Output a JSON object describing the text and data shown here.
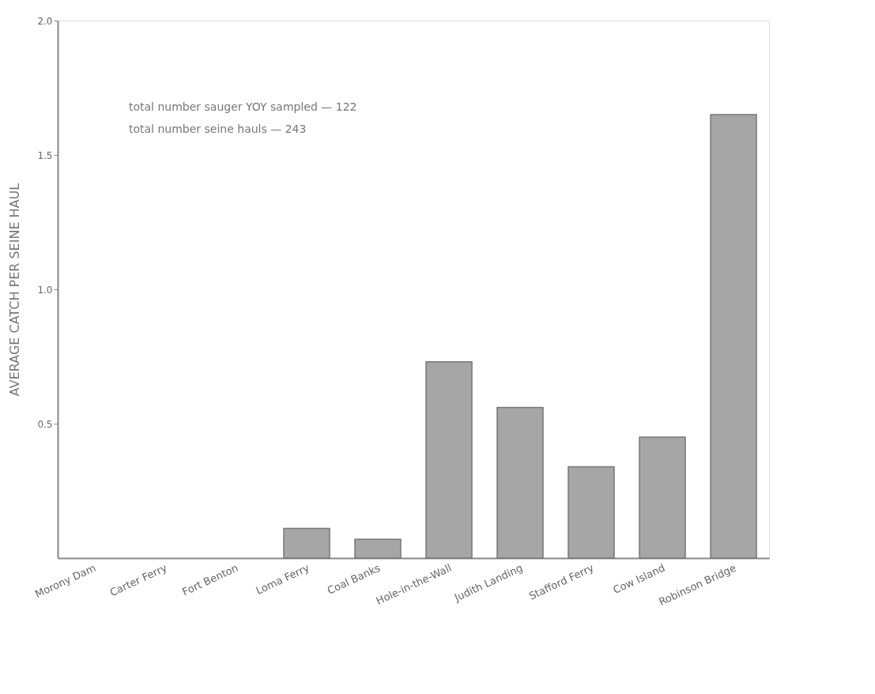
{
  "chart_data": {
    "type": "bar",
    "ylabel": "AVERAGE CATCH PER SEINE HAUL",
    "categories": [
      "Morony Dam",
      "Carter Ferry",
      "Fort Benton",
      "Loma Ferry",
      "Coal Banks",
      "Hole-in-the-Wall",
      "Judith Landing",
      "Stafford Ferry",
      "Cow Island",
      "Robinson Bridge"
    ],
    "values": [
      0,
      0,
      0,
      0.11,
      0.07,
      0.73,
      0.56,
      0.34,
      0.45,
      1.65
    ],
    "color": "#a6a6a6",
    "ylim": [
      0,
      2
    ],
    "yticks": [
      {
        "value": 0.5,
        "label": "0.5"
      },
      {
        "value": 1,
        "label": "1.0"
      },
      {
        "value": 1.5,
        "label": "1.5"
      },
      {
        "value": 2,
        "label": "2.0"
      }
    ],
    "grid": false,
    "annotations": [
      "total number sauger YOY sampled — 122",
      "total number seine hauls — 243"
    ]
  }
}
